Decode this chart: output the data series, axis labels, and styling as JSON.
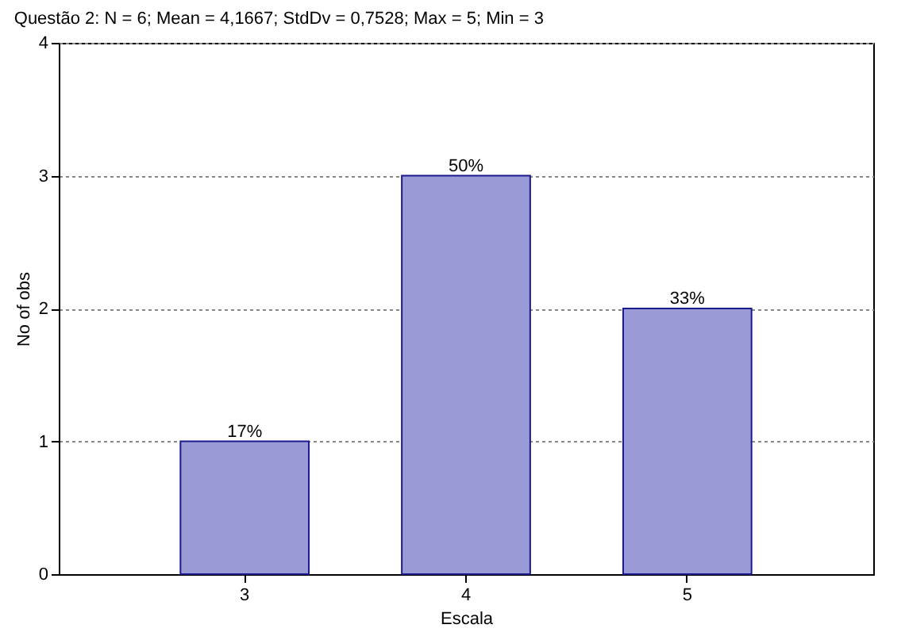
{
  "chart_data": {
    "type": "bar",
    "title": "Questão 2:  N = 6; Mean = 4,1667; StdDv = 0,7528; Max = 5; Min = 3",
    "xlabel": "Escala",
    "ylabel": "No of obs",
    "categories": [
      "3",
      "4",
      "5"
    ],
    "values": [
      1,
      3,
      2
    ],
    "annotations": [
      {
        "text": "17%",
        "x": "3",
        "y": 1
      },
      {
        "text": "50%",
        "x": "4",
        "y": 3
      },
      {
        "text": "33%",
        "x": "5",
        "y": 2
      }
    ],
    "color": "#9a9ad6",
    "ylim": [
      0,
      4
    ],
    "yticks": [
      0,
      1,
      2,
      3,
      4
    ],
    "grid": "y"
  }
}
